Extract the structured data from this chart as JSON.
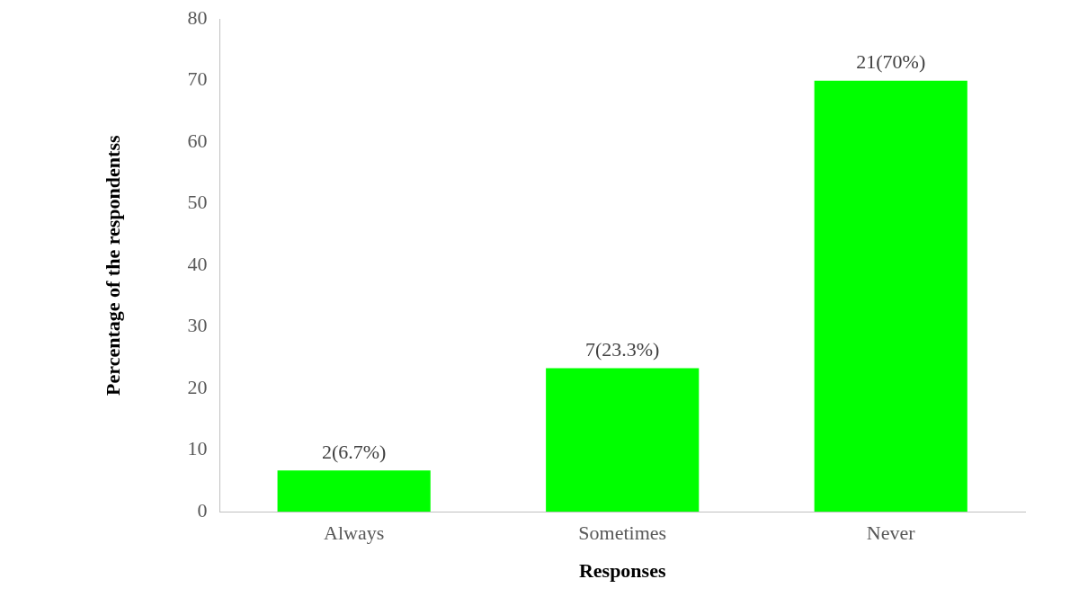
{
  "chart_data": {
    "type": "bar",
    "xlabel": "Responses",
    "ylabel": "Percentage of the respondentss",
    "categories": [
      "Always",
      "Sometimes",
      "Never"
    ],
    "values": [
      6.7,
      23.3,
      70
    ],
    "color": "#00ff00",
    "value_labels": [
      "2(6.7%)",
      "7(23.3%)",
      "21(70%)"
    ],
    "ylim": [
      0,
      80
    ],
    "yticks": [
      0,
      10,
      20,
      30,
      40,
      50,
      60,
      70,
      80
    ],
    "grid": false,
    "legend": false
  }
}
